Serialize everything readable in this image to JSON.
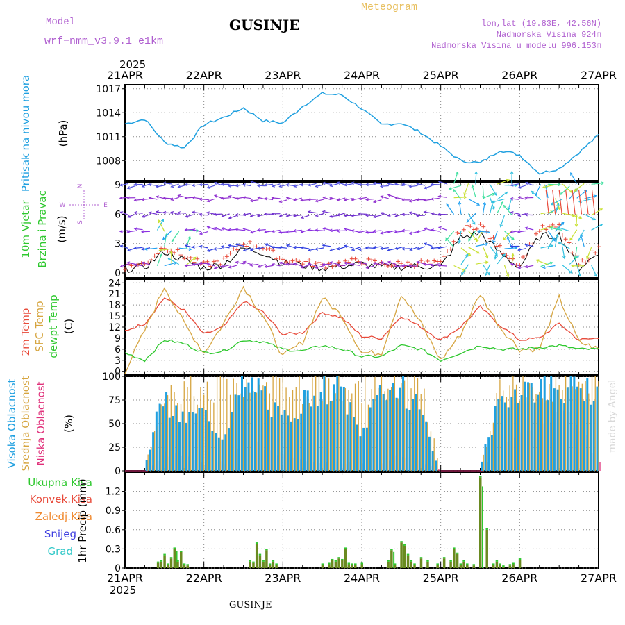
{
  "header": {
    "model_label": "Model",
    "model_name": "wrf−nmm_v3.9.1  e1km",
    "station_title": "GUSINJE",
    "meteogram_label": "Meteogram",
    "lonlat": "lon,lat (19.83E, 42.56N)",
    "altitude": "Nadmorska Visina 924m",
    "model_altitude": "Nadmorska Visina u modelu 996.153m",
    "year_top": "2025",
    "year_bottom": "2025",
    "footer_station": "GUSINJE",
    "credit": "made by Angel"
  },
  "colors": {
    "pressure": "#1fa0e0",
    "t2m": "#e84a3a",
    "tsfc": "#d6a540",
    "dewpt": "#2ec82e",
    "cloud_high": "#20a0e0",
    "cloud_mid": "#d6a540",
    "cloud_low": "#e0307a",
    "rain_total": "#2ec82e",
    "rain_conv": "#e84a3a",
    "rain_frozen": "#f08a30",
    "snow": "#4040e0",
    "hail": "#30c8c8",
    "model_text": "#b060d0"
  },
  "chart_data": [
    {
      "type": "line",
      "panel": "pressure",
      "ylabel": [
        "Pritisak na nivou mora",
        "(hPa)"
      ],
      "x_ticks": [
        "21APR",
        "22APR",
        "23APR",
        "24APR",
        "25APR",
        "26APR",
        "27APR"
      ],
      "ylim": [
        1005.5,
        1017.5
      ],
      "y_ticks": [
        1008,
        1011,
        1014,
        1017
      ],
      "x_hours": [
        0,
        6,
        12,
        18,
        24,
        30,
        36,
        42,
        48,
        54,
        60,
        66,
        72,
        78,
        84,
        90,
        96,
        102,
        108,
        114,
        120,
        126,
        132,
        138,
        144
      ],
      "series": [
        {
          "values": [
            1012.6,
            1013.2,
            1010.3,
            1009.6,
            1012.5,
            1013.4,
            1014.6,
            1013.0,
            1012.7,
            1014.8,
            1016.4,
            1016.2,
            1014.5,
            1012.5,
            1012.7,
            1011.5,
            1009.8,
            1008.0,
            1007.7,
            1009.3,
            1008.7,
            1006.4,
            1007.0,
            1009.0,
            1011.2
          ]
        }
      ]
    },
    {
      "type": "scatter",
      "panel": "wind",
      "ylabel": [
        "10m Vjetar",
        "Brzina i Pravac",
        "(m/s)"
      ],
      "compass": {
        "n": "N",
        "s": "S",
        "e": "E",
        "w": "W"
      },
      "ylim": [
        -0.5,
        9.3
      ],
      "y_ticks": [
        0,
        3,
        6,
        9
      ],
      "x_hours": [
        0,
        6,
        12,
        18,
        24,
        30,
        36,
        42,
        48,
        54,
        60,
        66,
        72,
        78,
        84,
        90,
        96,
        102,
        108,
        114,
        120,
        126,
        132,
        138,
        144
      ],
      "series": [
        {
          "name": "speed",
          "values": [
            0.4,
            0.6,
            2.2,
            1.3,
            0.5,
            0.9,
            2.5,
            2.1,
            1.0,
            0.8,
            0.5,
            0.7,
            0.9,
            0.6,
            0.6,
            0.7,
            0.6,
            3.6,
            4.1,
            2.0,
            0.6,
            3.7,
            3.9,
            0.5,
            2.0
          ]
        }
      ]
    },
    {
      "type": "line",
      "panel": "temperature",
      "ylabel": [
        "2m Temp",
        "SFC Temp",
        "dewpt Temp",
        "(C)"
      ],
      "ylim": [
        -1,
        25
      ],
      "y_ticks": [
        0,
        3,
        6,
        9,
        12,
        15,
        18,
        21,
        24
      ],
      "x_hours": [
        0,
        6,
        12,
        18,
        24,
        30,
        36,
        42,
        48,
        54,
        60,
        66,
        72,
        78,
        84,
        90,
        96,
        102,
        108,
        114,
        120,
        126,
        132,
        138,
        144
      ],
      "series": [
        {
          "values": [
            11.0,
            13.0,
            20.0,
            16.5,
            10.0,
            12.0,
            19.0,
            16.0,
            10.0,
            10.5,
            16.0,
            14.5,
            9.5,
            9.0,
            15.0,
            12.0,
            8.5,
            12.0,
            17.5,
            12.5,
            8.5,
            9.0,
            13.0,
            8.5,
            9.0
          ]
        },
        {
          "values": [
            0.0,
            11.0,
            23.0,
            13.0,
            5.0,
            13.0,
            23.0,
            15.0,
            4.0,
            8.0,
            20.0,
            15.0,
            5.0,
            5.0,
            21.0,
            13.0,
            3.0,
            10.0,
            21.0,
            12.0,
            6.0,
            6.0,
            20.0,
            8.0,
            6.0
          ]
        },
        {
          "values": [
            5.0,
            3.0,
            8.5,
            7.5,
            5.0,
            5.5,
            8.5,
            8.0,
            6.0,
            5.5,
            7.0,
            6.0,
            4.0,
            4.0,
            7.0,
            6.0,
            3.0,
            5.0,
            7.0,
            6.0,
            6.0,
            6.5,
            7.0,
            6.0,
            6.0
          ]
        }
      ]
    },
    {
      "type": "bar",
      "panel": "clouds",
      "ylabel": [
        "Visoka Oblacnost",
        "Srednja Oblacnost",
        "Niska  Oblacnost",
        "(%)"
      ],
      "ylim": [
        0,
        100
      ],
      "y_ticks": [
        0,
        25,
        50,
        75,
        100
      ],
      "x_hours": [
        0,
        6,
        12,
        18,
        24,
        30,
        36,
        42,
        48,
        54,
        60,
        66,
        72,
        78,
        84,
        90,
        96,
        102,
        108,
        114,
        120,
        126,
        132,
        138,
        144
      ],
      "series": [
        {
          "values": [
            0,
            0,
            90,
            60,
            70,
            40,
            100,
            100,
            60,
            80,
            100,
            100,
            40,
            100,
            100,
            80,
            0,
            0,
            0,
            80,
            100,
            100,
            100,
            100,
            100
          ]
        },
        {
          "values": [
            0,
            0,
            100,
            100,
            100,
            100,
            100,
            100,
            100,
            100,
            100,
            100,
            100,
            100,
            100,
            100,
            0,
            0,
            0,
            100,
            100,
            100,
            100,
            100,
            100
          ]
        },
        {
          "values": [
            0,
            0,
            20,
            20,
            10,
            10,
            30,
            30,
            20,
            10,
            10,
            10,
            10,
            10,
            20,
            10,
            0,
            0,
            0,
            30,
            40,
            60,
            70,
            50,
            10
          ]
        }
      ]
    },
    {
      "type": "bar",
      "panel": "precipitation",
      "ylabel": [
        "1hr Precip (mm)"
      ],
      "legend": [
        "Ukupna  Kisa",
        "Konvek.Kisa",
        "Zaledj.Kisa",
        "Snijeg",
        "Grad"
      ],
      "ylim": [
        0,
        1.5
      ],
      "y_ticks": [
        0,
        0.3,
        0.6,
        0.9,
        1.2
      ],
      "x_hours": [
        10,
        11,
        12,
        13,
        14,
        15,
        16,
        17,
        18,
        19,
        38,
        39,
        40,
        41,
        42,
        43,
        44,
        45,
        46,
        60,
        62,
        63,
        64,
        65,
        66,
        67,
        68,
        69,
        70,
        72,
        80,
        81,
        82,
        84,
        85,
        86,
        87,
        88,
        90,
        92,
        95,
        97,
        99,
        100,
        101,
        102,
        103,
        104,
        106,
        108,
        110,
        112,
        113,
        114,
        115,
        117,
        118,
        120
      ],
      "series": [
        {
          "values": [
            0.08,
            0.1,
            0.2,
            0.05,
            0.15,
            0.3,
            0.1,
            0.25,
            0.05,
            0.04,
            0.1,
            0.08,
            0.38,
            0.2,
            0.1,
            0.28,
            0.05,
            0.1,
            0.05,
            0.05,
            0.06,
            0.12,
            0.1,
            0.15,
            0.12,
            0.3,
            0.06,
            0.05,
            0.05,
            0.06,
            0.1,
            0.28,
            0.05,
            0.4,
            0.35,
            0.2,
            0.1,
            0.05,
            0.15,
            0.1,
            0.05,
            0.15,
            0.1,
            0.3,
            0.22,
            0.05,
            0.1,
            0.05,
            0.04,
            1.42,
            0.6,
            0.05,
            0.1,
            0.05,
            0.02,
            0.04,
            0.06,
            0.13
          ]
        }
      ]
    }
  ]
}
